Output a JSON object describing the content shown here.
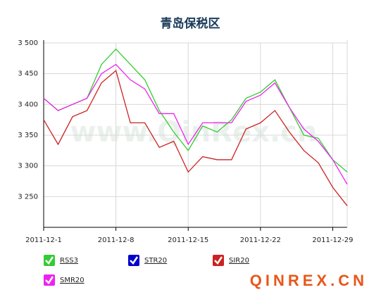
{
  "chart_data": {
    "type": "line",
    "title": "青岛保税区",
    "watermark": "www.QinRex.cn",
    "logo": "QINREX.CN",
    "categories": [
      "2011-12-1",
      null,
      null,
      null,
      null,
      "2011-12-8",
      null,
      null,
      null,
      null,
      "2011-12-15",
      null,
      null,
      null,
      null,
      "2011-12-22",
      null,
      null,
      null,
      null,
      "2011-12-29",
      null
    ],
    "series": [
      {
        "name": "RSS3",
        "color": "#33cc33",
        "values": [
          3410,
          3390,
          3400,
          3410,
          3465,
          3490,
          3465,
          3440,
          3390,
          3355,
          3325,
          3365,
          3355,
          3375,
          3410,
          3420,
          3440,
          3395,
          3350,
          3345,
          3310,
          3290
        ]
      },
      {
        "name": "STR20",
        "color": "#0000cc",
        "values": [
          null,
          null,
          null,
          null,
          null,
          null,
          null,
          null,
          null,
          null,
          null,
          null,
          null,
          null,
          null,
          null,
          null,
          null,
          null,
          null,
          null,
          null
        ]
      },
      {
        "name": "SIR20",
        "color": "#cc2222",
        "values": [
          3375,
          3335,
          3380,
          3390,
          3435,
          3455,
          3370,
          3370,
          3330,
          3340,
          3290,
          3315,
          3310,
          3310,
          3360,
          3370,
          3390,
          3355,
          3325,
          3305,
          3265,
          3235
        ]
      },
      {
        "name": "SMR20",
        "color": "#ee22ee",
        "values": [
          3410,
          3390,
          3400,
          3410,
          3450,
          3465,
          3440,
          3425,
          3385,
          3385,
          3335,
          3370,
          3370,
          3370,
          3405,
          3415,
          3435,
          3395,
          3360,
          3340,
          3310,
          3270
        ]
      }
    ],
    "ylim": [
      3200,
      3500
    ],
    "yticks": [
      {
        "value": 3250,
        "label": "3 250"
      },
      {
        "value": 3300,
        "label": "3 300"
      },
      {
        "value": 3350,
        "label": "3 350"
      },
      {
        "value": 3400,
        "label": "3 400"
      },
      {
        "value": 3450,
        "label": "3 450"
      },
      {
        "value": 3500,
        "label": "3 500"
      }
    ],
    "grid": true
  }
}
